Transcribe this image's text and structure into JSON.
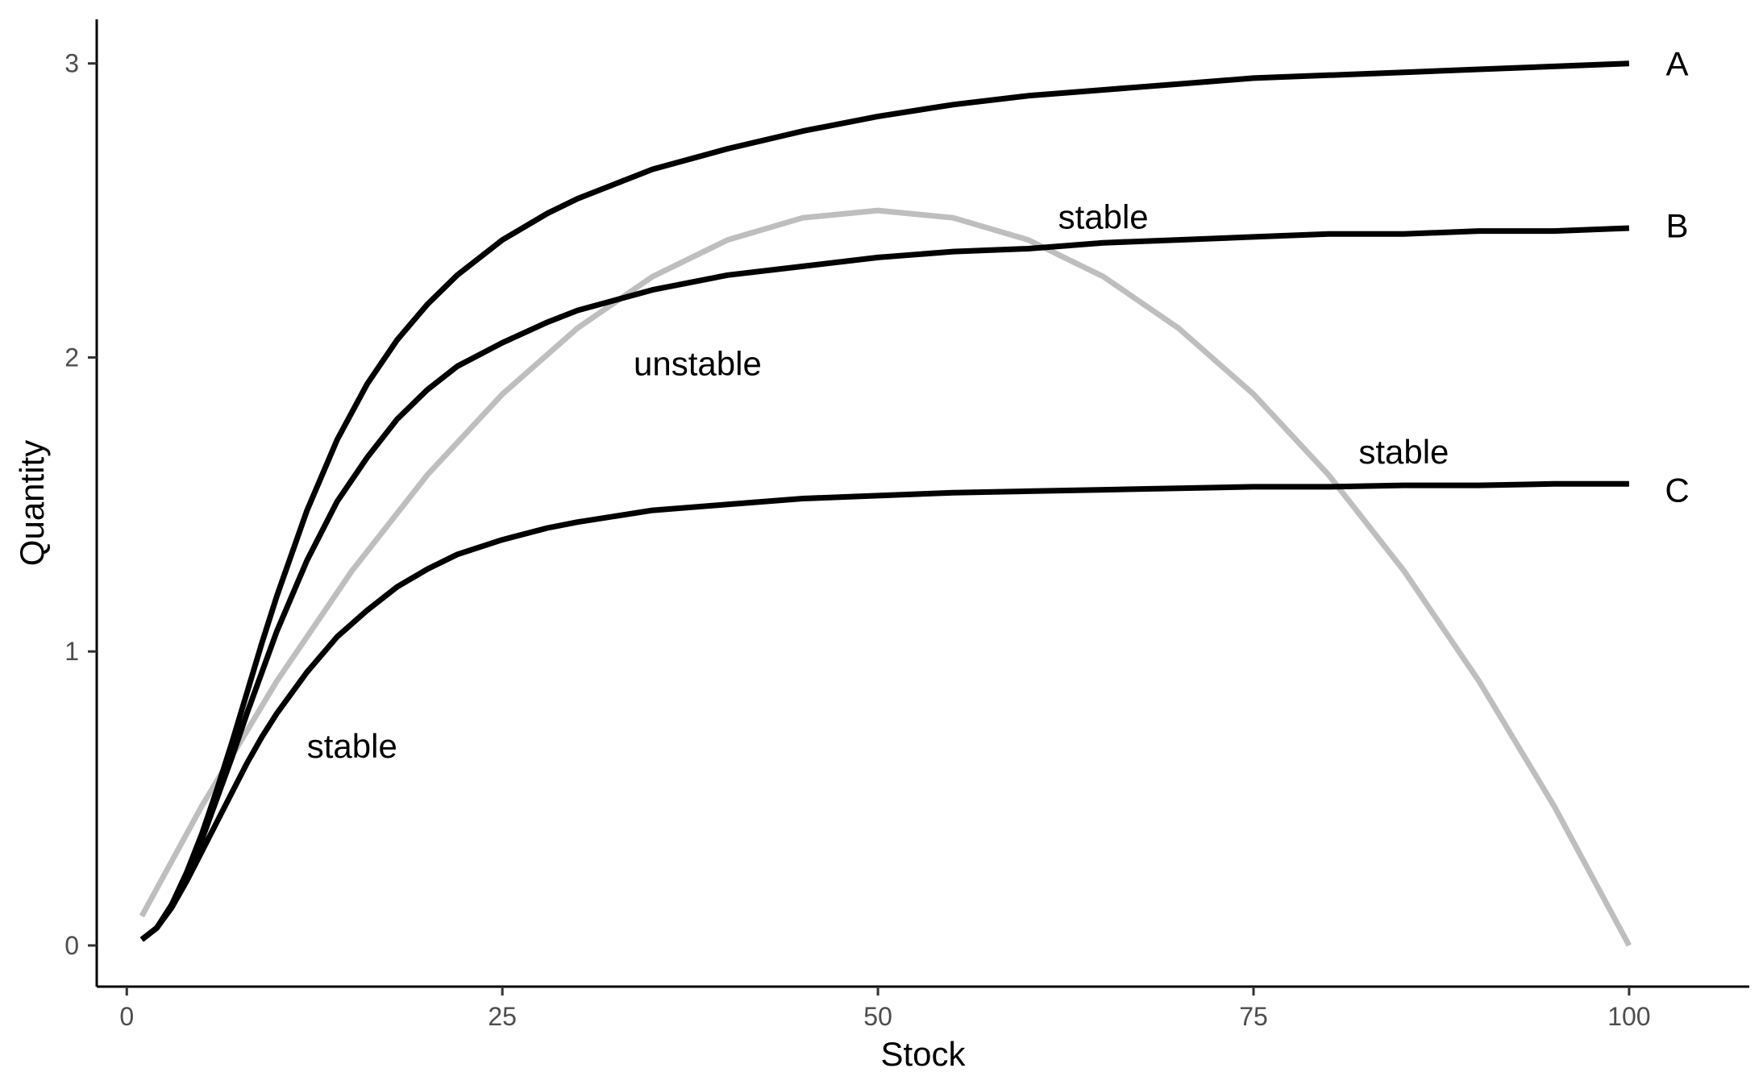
{
  "chart_data": {
    "type": "line",
    "title": "",
    "xlabel": "Stock",
    "ylabel": "Quantity",
    "xlim": [
      -2,
      108
    ],
    "ylim": [
      -0.14,
      3.15
    ],
    "xticks": [
      0,
      25,
      50,
      75,
      100
    ],
    "xtick_labels": [
      "0",
      "25",
      "50",
      "75",
      "100"
    ],
    "yticks": [
      0,
      1,
      2,
      3
    ],
    "ytick_labels": [
      "0",
      "1",
      "2",
      "3"
    ],
    "grid": false,
    "legend": "none",
    "series": [
      {
        "name": "A",
        "color": "#000000",
        "x": [
          1,
          2,
          3,
          4,
          5,
          6,
          7,
          8,
          9,
          10,
          12,
          14,
          16,
          18,
          20,
          22,
          25,
          28,
          30,
          35,
          40,
          45,
          50,
          55,
          60,
          65,
          70,
          75,
          80,
          85,
          90,
          95,
          100
        ],
        "y": [
          0.02,
          0.06,
          0.14,
          0.25,
          0.38,
          0.53,
          0.69,
          0.86,
          1.03,
          1.19,
          1.48,
          1.72,
          1.91,
          2.06,
          2.18,
          2.28,
          2.4,
          2.49,
          2.54,
          2.64,
          2.71,
          2.77,
          2.82,
          2.86,
          2.89,
          2.91,
          2.93,
          2.95,
          2.96,
          2.97,
          2.98,
          2.99,
          3.0
        ]
      },
      {
        "name": "B",
        "color": "#000000",
        "x": [
          1,
          2,
          3,
          4,
          5,
          6,
          7,
          8,
          9,
          10,
          12,
          14,
          16,
          18,
          20,
          22,
          25,
          28,
          30,
          35,
          40,
          45,
          50,
          55,
          60,
          65,
          70,
          75,
          80,
          85,
          90,
          95,
          100
        ],
        "y": [
          0.02,
          0.06,
          0.13,
          0.24,
          0.36,
          0.5,
          0.64,
          0.79,
          0.93,
          1.07,
          1.31,
          1.51,
          1.66,
          1.79,
          1.89,
          1.97,
          2.05,
          2.12,
          2.16,
          2.23,
          2.28,
          2.31,
          2.34,
          2.36,
          2.37,
          2.39,
          2.4,
          2.41,
          2.42,
          2.42,
          2.43,
          2.43,
          2.44
        ]
      },
      {
        "name": "C",
        "color": "#000000",
        "x": [
          1,
          2,
          3,
          4,
          5,
          6,
          7,
          8,
          9,
          10,
          12,
          14,
          16,
          18,
          20,
          22,
          25,
          28,
          30,
          35,
          40,
          45,
          50,
          55,
          60,
          65,
          70,
          75,
          80,
          85,
          90,
          95,
          100
        ],
        "y": [
          0.02,
          0.06,
          0.13,
          0.22,
          0.32,
          0.42,
          0.52,
          0.62,
          0.71,
          0.79,
          0.93,
          1.05,
          1.14,
          1.22,
          1.28,
          1.33,
          1.38,
          1.42,
          1.44,
          1.48,
          1.5,
          1.52,
          1.53,
          1.54,
          1.545,
          1.55,
          1.555,
          1.56,
          1.56,
          1.565,
          1.565,
          1.57,
          1.57
        ]
      },
      {
        "name": "",
        "color": "#bebebe",
        "x": [
          1,
          5,
          10,
          15,
          20,
          25,
          30,
          35,
          40,
          45,
          50,
          55,
          60,
          65,
          70,
          75,
          80,
          85,
          90,
          95,
          100
        ],
        "y": [
          0.1,
          0.475,
          0.9,
          1.275,
          1.6,
          1.875,
          2.1,
          2.275,
          2.4,
          2.475,
          2.5,
          2.475,
          2.4,
          2.275,
          2.1,
          1.875,
          1.6,
          1.275,
          0.9,
          0.475,
          0.0
        ]
      }
    ],
    "series_labels": [
      {
        "text": "A",
        "x": 103.2,
        "y": 3.0
      },
      {
        "text": "B",
        "x": 103.2,
        "y": 2.45
      },
      {
        "text": "C",
        "x": 103.2,
        "y": 1.55
      }
    ],
    "annotations": [
      {
        "text": "stable",
        "x": 15,
        "y": 0.68
      },
      {
        "text": "unstable",
        "x": 38,
        "y": 1.98
      },
      {
        "text": "stable",
        "x": 65,
        "y": 2.48
      },
      {
        "text": "stable",
        "x": 85,
        "y": 1.68
      }
    ]
  }
}
